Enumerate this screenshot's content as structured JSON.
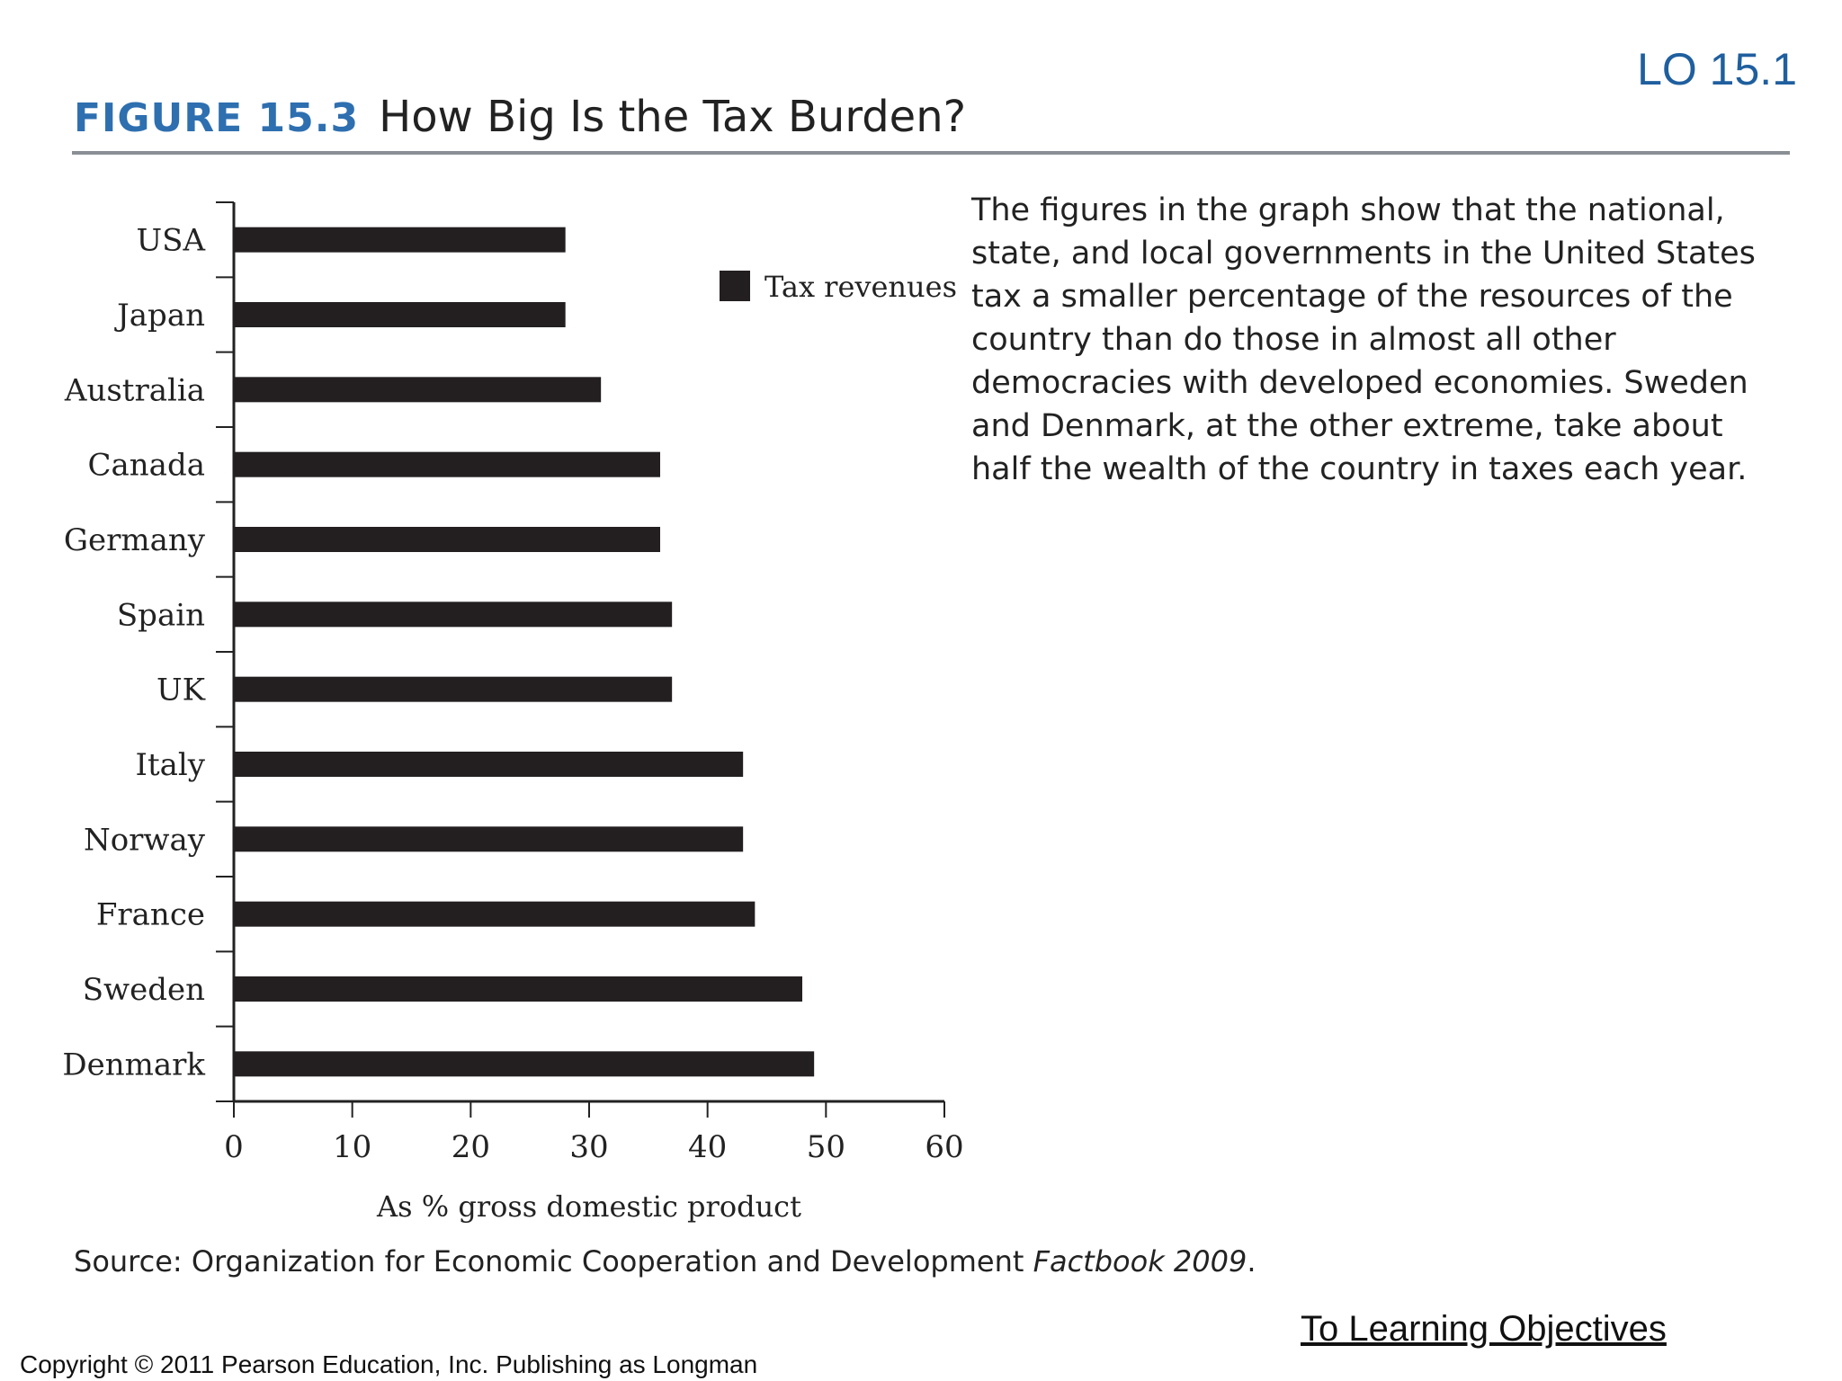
{
  "header": {
    "lo_badge": "LO 15.1",
    "figure_label": "FIGURE 15.3",
    "figure_title": "How Big Is the Tax Burden?"
  },
  "caption": "The figures in the graph show that the national, state, and local governments in the United States tax a smaller percentage of the resources of the country than do those in almost all other democracies with developed economies. Sweden and Denmark, at the other extreme, take about half the wealth of the country in taxes each year.",
  "source": {
    "prefix": "Source: Organization for Economic Cooperation and Development ",
    "italic": "Factbook 2009",
    "suffix": "."
  },
  "footer": {
    "link_label": "To Learning Objectives",
    "copyright": "Copyright © 2011 Pearson Education, Inc. Publishing as Longman"
  },
  "colors": {
    "bar": "#231f20",
    "accent": "#2e6fb0",
    "lo": "#1f5f9e"
  },
  "chart_data": {
    "type": "bar",
    "orientation": "horizontal",
    "title": "How Big Is the Tax Burden?",
    "categories": [
      "USA",
      "Japan",
      "Australia",
      "Canada",
      "Germany",
      "Spain",
      "UK",
      "Italy",
      "Norway",
      "France",
      "Sweden",
      "Denmark"
    ],
    "series": [
      {
        "name": "Tax revenues",
        "values": [
          28,
          28,
          31,
          36,
          36,
          37,
          37,
          43,
          43,
          44,
          48,
          49
        ]
      }
    ],
    "xlabel": "As % gross domestic product",
    "ylabel": "",
    "xlim": [
      0,
      60
    ],
    "xticks": [
      0,
      10,
      20,
      30,
      40,
      50,
      60
    ],
    "legend": "top-right",
    "grid": false
  }
}
